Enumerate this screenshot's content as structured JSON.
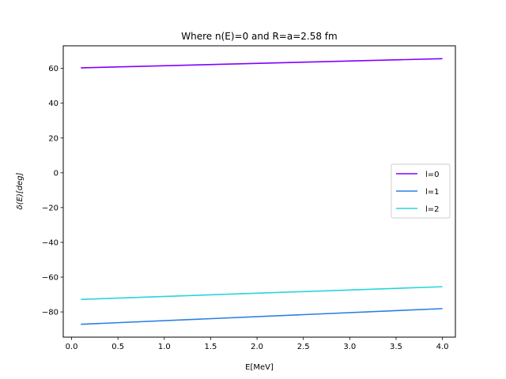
{
  "chart_data": {
    "type": "line",
    "title": "Where n(E)=0 and R=a=2.58 fm",
    "xlabel": "E[MeV]",
    "ylabel": "δ(E)[deg]",
    "xlim": [
      -0.09,
      4.14
    ],
    "ylim": [
      -94.5,
      73.0
    ],
    "xticks": [
      0.0,
      0.5,
      1.0,
      1.5,
      2.0,
      2.5,
      3.0,
      3.5,
      4.0
    ],
    "xtick_labels": [
      "0.0",
      "0.5",
      "1.0",
      "1.5",
      "2.0",
      "2.5",
      "3.0",
      "3.5",
      "4.0"
    ],
    "yticks": [
      -80,
      -60,
      -40,
      -20,
      0,
      20,
      40,
      60
    ],
    "ytick_labels": [
      "−80",
      "−60",
      "−40",
      "−20",
      "0",
      "20",
      "40",
      "60"
    ],
    "grid": false,
    "legend_position": "center-right",
    "series": [
      {
        "name": "l=0",
        "color": "#8000ff",
        "x": [
          0.1,
          4.0
        ],
        "y": [
          60.3,
          65.6
        ]
      },
      {
        "name": "l=1",
        "color": "#2c7fe0",
        "x": [
          0.1,
          4.0
        ],
        "y": [
          -87.1,
          -78.1
        ]
      },
      {
        "name": "l=2",
        "color": "#2ad4de",
        "x": [
          0.1,
          4.0
        ],
        "y": [
          -72.8,
          -65.5
        ]
      }
    ]
  }
}
